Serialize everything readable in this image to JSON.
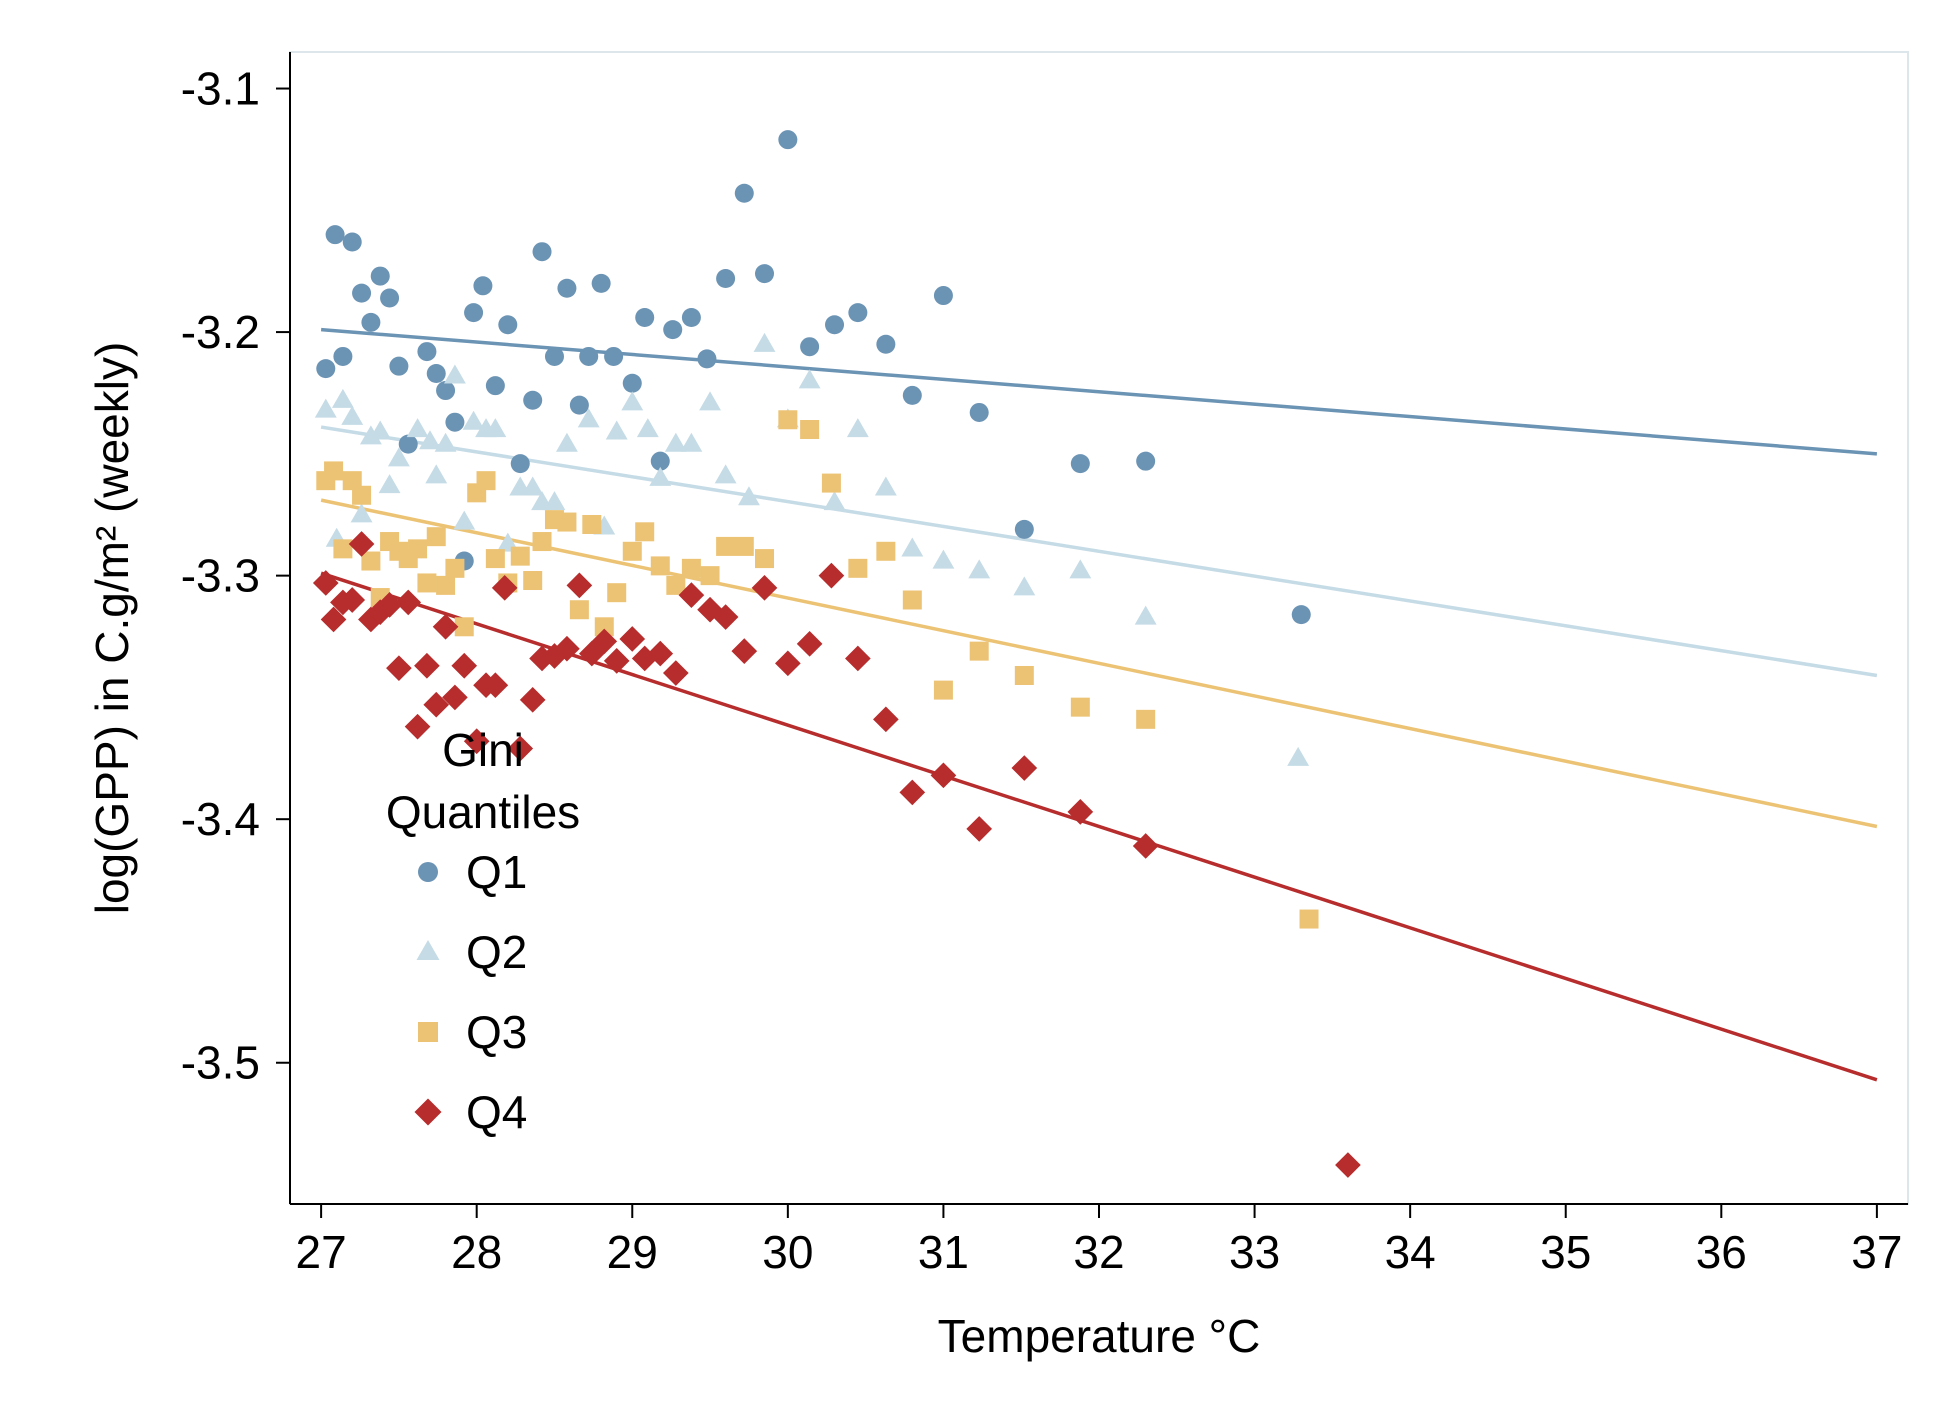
{
  "chart_data": {
    "type": "scatter",
    "title": "",
    "xlabel": "Temperature °C",
    "ylabel": "log(GPP) in C.g/m² (weekly)",
    "xlim": [
      26.8,
      37.2
    ],
    "ylim": [
      -3.558,
      -3.085
    ],
    "x_ticks": [
      27,
      28,
      29,
      30,
      31,
      32,
      33,
      34,
      35,
      36,
      37
    ],
    "y_ticks": [
      -3.1,
      -3.2,
      -3.3,
      -3.4,
      -3.5
    ],
    "x_tick_labels": [
      "27",
      "28",
      "29",
      "30",
      "31",
      "32",
      "33",
      "34",
      "35",
      "36",
      "37"
    ],
    "y_tick_labels": [
      "-3.1",
      "-3.2",
      "-3.3",
      "-3.4",
      "-3.5"
    ],
    "grid": false,
    "legend": {
      "title_line1": "Gini",
      "title_line2": "Quantiles",
      "placement": "lower-left"
    },
    "series": [
      {
        "name": "Q1",
        "marker": "circle",
        "color": "#6b93b4",
        "fit": [
          [
            27,
            -3.199
          ],
          [
            37,
            -3.25
          ]
        ],
        "points": [
          [
            27.03,
            -3.215
          ],
          [
            27.09,
            -3.16
          ],
          [
            27.14,
            -3.21
          ],
          [
            27.2,
            -3.163
          ],
          [
            27.26,
            -3.184
          ],
          [
            27.32,
            -3.196
          ],
          [
            27.38,
            -3.177
          ],
          [
            27.44,
            -3.186
          ],
          [
            27.5,
            -3.214
          ],
          [
            27.56,
            -3.246
          ],
          [
            27.68,
            -3.208
          ],
          [
            27.74,
            -3.217
          ],
          [
            27.8,
            -3.224
          ],
          [
            27.86,
            -3.237
          ],
          [
            27.92,
            -3.294
          ],
          [
            27.98,
            -3.192
          ],
          [
            28.04,
            -3.181
          ],
          [
            28.12,
            -3.222
          ],
          [
            28.2,
            -3.197
          ],
          [
            28.28,
            -3.254
          ],
          [
            28.36,
            -3.228
          ],
          [
            28.42,
            -3.167
          ],
          [
            28.5,
            -3.21
          ],
          [
            28.58,
            -3.182
          ],
          [
            28.66,
            -3.23
          ],
          [
            28.72,
            -3.21
          ],
          [
            28.8,
            -3.18
          ],
          [
            28.88,
            -3.21
          ],
          [
            29.0,
            -3.221
          ],
          [
            29.08,
            -3.194
          ],
          [
            29.18,
            -3.253
          ],
          [
            29.26,
            -3.199
          ],
          [
            29.38,
            -3.194
          ],
          [
            29.48,
            -3.211
          ],
          [
            29.6,
            -3.178
          ],
          [
            29.72,
            -3.143
          ],
          [
            29.85,
            -3.176
          ],
          [
            30.0,
            -3.121
          ],
          [
            30.14,
            -3.206
          ],
          [
            30.3,
            -3.197
          ],
          [
            30.45,
            -3.192
          ],
          [
            30.63,
            -3.205
          ],
          [
            30.8,
            -3.226
          ],
          [
            31.0,
            -3.185
          ],
          [
            31.23,
            -3.233
          ],
          [
            31.52,
            -3.281
          ],
          [
            31.88,
            -3.254
          ],
          [
            32.3,
            -3.253
          ],
          [
            33.3,
            -3.316
          ]
        ]
      },
      {
        "name": "Q2",
        "marker": "triangle",
        "color": "#c5dbe6",
        "fit": [
          [
            27,
            -3.239
          ],
          [
            37,
            -3.341
          ]
        ],
        "points": [
          [
            27.03,
            -3.232
          ],
          [
            27.1,
            -3.285
          ],
          [
            27.14,
            -3.228
          ],
          [
            27.2,
            -3.235
          ],
          [
            27.26,
            -3.275
          ],
          [
            27.32,
            -3.243
          ],
          [
            27.38,
            -3.241
          ],
          [
            27.44,
            -3.263
          ],
          [
            27.5,
            -3.252
          ],
          [
            27.62,
            -3.24
          ],
          [
            27.7,
            -3.245
          ],
          [
            27.74,
            -3.259
          ],
          [
            27.8,
            -3.246
          ],
          [
            27.86,
            -3.218
          ],
          [
            27.92,
            -3.278
          ],
          [
            27.98,
            -3.237
          ],
          [
            28.06,
            -3.24
          ],
          [
            28.12,
            -3.24
          ],
          [
            28.2,
            -3.287
          ],
          [
            28.28,
            -3.264
          ],
          [
            28.36,
            -3.264
          ],
          [
            28.42,
            -3.27
          ],
          [
            28.5,
            -3.27
          ],
          [
            28.58,
            -3.246
          ],
          [
            28.72,
            -3.236
          ],
          [
            28.82,
            -3.28
          ],
          [
            28.9,
            -3.241
          ],
          [
            29.0,
            -3.229
          ],
          [
            29.1,
            -3.24
          ],
          [
            29.18,
            -3.26
          ],
          [
            29.28,
            -3.246
          ],
          [
            29.38,
            -3.246
          ],
          [
            29.5,
            -3.229
          ],
          [
            29.6,
            -3.259
          ],
          [
            29.75,
            -3.268
          ],
          [
            29.85,
            -3.205
          ],
          [
            30.0,
            -3.236
          ],
          [
            30.14,
            -3.22
          ],
          [
            30.3,
            -3.27
          ],
          [
            30.45,
            -3.24
          ],
          [
            30.63,
            -3.264
          ],
          [
            30.8,
            -3.289
          ],
          [
            31.0,
            -3.294
          ],
          [
            31.23,
            -3.298
          ],
          [
            31.52,
            -3.305
          ],
          [
            31.88,
            -3.298
          ],
          [
            32.3,
            -3.317
          ],
          [
            33.28,
            -3.375
          ]
        ]
      },
      {
        "name": "Q3",
        "marker": "square",
        "color": "#ecc375",
        "fit": [
          [
            27,
            -3.269
          ],
          [
            37,
            -3.403
          ]
        ],
        "points": [
          [
            27.03,
            -3.261
          ],
          [
            27.08,
            -3.257
          ],
          [
            27.14,
            -3.289
          ],
          [
            27.2,
            -3.261
          ],
          [
            27.26,
            -3.267
          ],
          [
            27.32,
            -3.294
          ],
          [
            27.38,
            -3.309
          ],
          [
            27.44,
            -3.286
          ],
          [
            27.5,
            -3.29
          ],
          [
            27.56,
            -3.293
          ],
          [
            27.62,
            -3.289
          ],
          [
            27.68,
            -3.303
          ],
          [
            27.74,
            -3.284
          ],
          [
            27.8,
            -3.304
          ],
          [
            27.86,
            -3.297
          ],
          [
            27.92,
            -3.321
          ],
          [
            28.0,
            -3.266
          ],
          [
            28.06,
            -3.261
          ],
          [
            28.12,
            -3.293
          ],
          [
            28.2,
            -3.303
          ],
          [
            28.28,
            -3.292
          ],
          [
            28.36,
            -3.302
          ],
          [
            28.42,
            -3.286
          ],
          [
            28.5,
            -3.277
          ],
          [
            28.58,
            -3.278
          ],
          [
            28.66,
            -3.314
          ],
          [
            28.74,
            -3.279
          ],
          [
            28.82,
            -3.321
          ],
          [
            28.9,
            -3.307
          ],
          [
            29.0,
            -3.29
          ],
          [
            29.08,
            -3.282
          ],
          [
            29.18,
            -3.296
          ],
          [
            29.28,
            -3.304
          ],
          [
            29.38,
            -3.297
          ],
          [
            29.5,
            -3.3
          ],
          [
            29.6,
            -3.288
          ],
          [
            29.72,
            -3.288
          ],
          [
            29.85,
            -3.293
          ],
          [
            30.0,
            -3.236
          ],
          [
            30.14,
            -3.24
          ],
          [
            30.28,
            -3.262
          ],
          [
            30.45,
            -3.297
          ],
          [
            30.63,
            -3.29
          ],
          [
            30.8,
            -3.31
          ],
          [
            31.0,
            -3.347
          ],
          [
            31.23,
            -3.331
          ],
          [
            31.52,
            -3.341
          ],
          [
            31.88,
            -3.354
          ],
          [
            32.3,
            -3.359
          ],
          [
            33.35,
            -3.441
          ]
        ]
      },
      {
        "name": "Q4",
        "marker": "diamond",
        "color": "#b72c2c",
        "fit": [
          [
            27,
            -3.299
          ],
          [
            37,
            -3.507
          ]
        ],
        "points": [
          [
            27.03,
            -3.303
          ],
          [
            27.08,
            -3.318
          ],
          [
            27.14,
            -3.311
          ],
          [
            27.2,
            -3.31
          ],
          [
            27.26,
            -3.287
          ],
          [
            27.32,
            -3.318
          ],
          [
            27.38,
            -3.315
          ],
          [
            27.44,
            -3.312
          ],
          [
            27.5,
            -3.338
          ],
          [
            27.56,
            -3.311
          ],
          [
            27.62,
            -3.362
          ],
          [
            27.68,
            -3.337
          ],
          [
            27.74,
            -3.353
          ],
          [
            27.8,
            -3.321
          ],
          [
            27.86,
            -3.35
          ],
          [
            27.92,
            -3.337
          ],
          [
            28.0,
            -3.368
          ],
          [
            28.06,
            -3.345
          ],
          [
            28.12,
            -3.345
          ],
          [
            28.18,
            -3.305
          ],
          [
            28.28,
            -3.371
          ],
          [
            28.36,
            -3.351
          ],
          [
            28.42,
            -3.334
          ],
          [
            28.5,
            -3.333
          ],
          [
            28.58,
            -3.33
          ],
          [
            28.66,
            -3.304
          ],
          [
            28.74,
            -3.332
          ],
          [
            28.82,
            -3.327
          ],
          [
            28.9,
            -3.335
          ],
          [
            29.0,
            -3.326
          ],
          [
            29.08,
            -3.334
          ],
          [
            29.18,
            -3.332
          ],
          [
            29.28,
            -3.34
          ],
          [
            29.38,
            -3.308
          ],
          [
            29.5,
            -3.314
          ],
          [
            29.6,
            -3.317
          ],
          [
            29.72,
            -3.331
          ],
          [
            29.85,
            -3.305
          ],
          [
            30.0,
            -3.336
          ],
          [
            30.14,
            -3.328
          ],
          [
            30.28,
            -3.3
          ],
          [
            30.45,
            -3.334
          ],
          [
            30.63,
            -3.359
          ],
          [
            30.8,
            -3.389
          ],
          [
            31.0,
            -3.382
          ],
          [
            31.23,
            -3.404
          ],
          [
            31.52,
            -3.379
          ],
          [
            31.88,
            -3.397
          ],
          [
            32.3,
            -3.411
          ],
          [
            33.6,
            -3.542
          ]
        ]
      }
    ]
  }
}
